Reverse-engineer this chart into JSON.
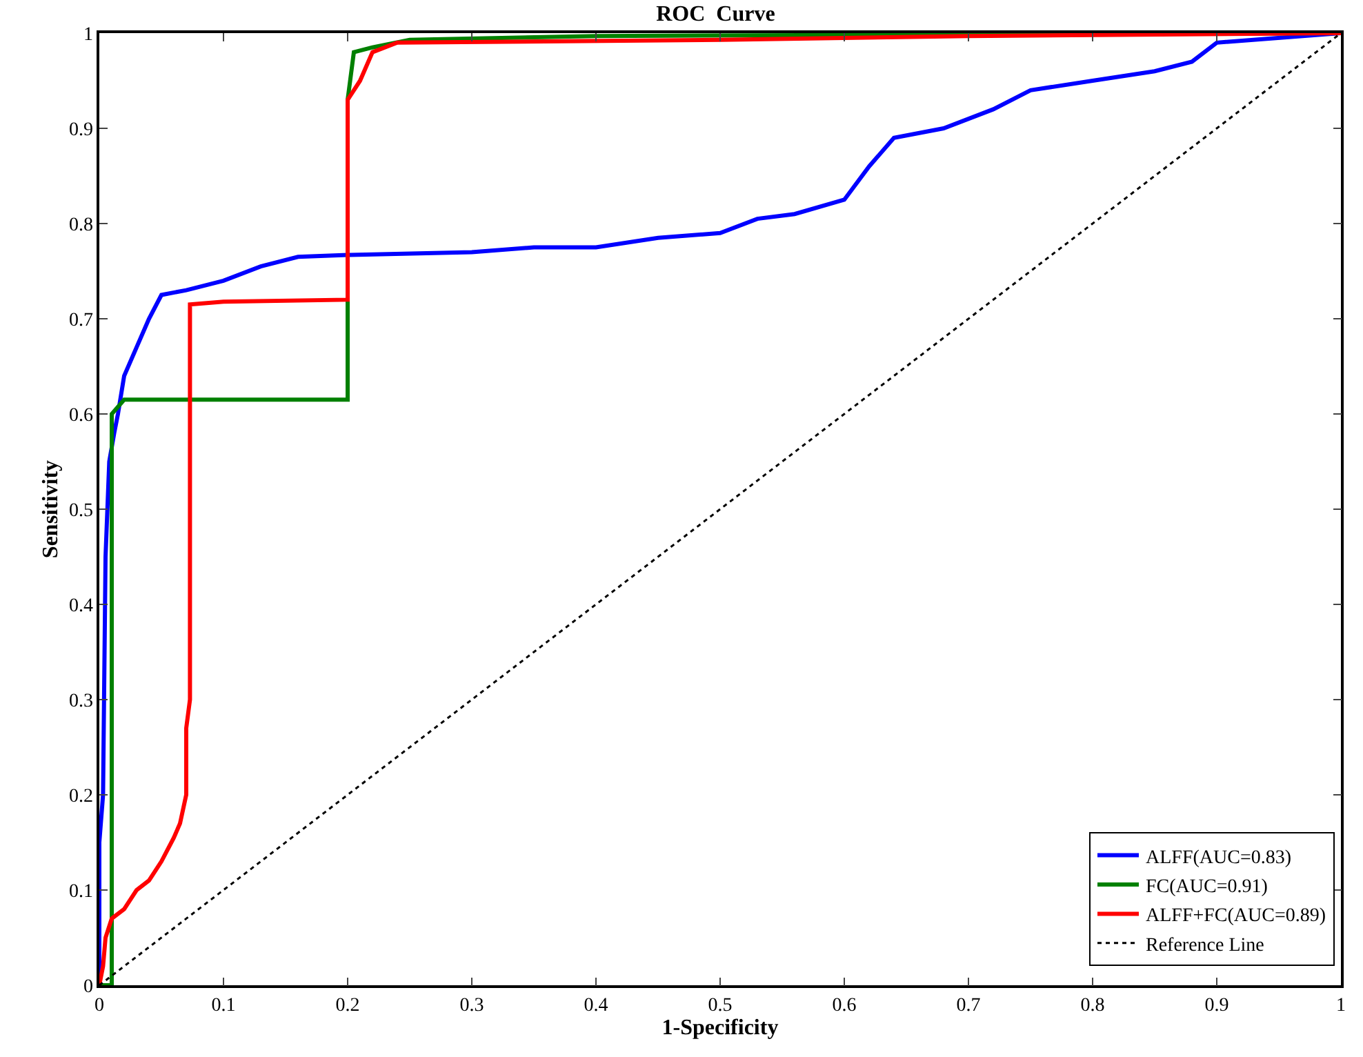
{
  "chart_data": {
    "type": "line",
    "title": "ROC  Curve",
    "xlabel": "1-Specificity",
    "ylabel": "Sensitivity",
    "xlim": [
      0,
      1
    ],
    "ylim": [
      0,
      1
    ],
    "xticks": [
      0,
      0.1,
      0.2,
      0.3,
      0.4,
      0.5,
      0.6,
      0.7,
      0.8,
      0.9,
      1
    ],
    "yticks": [
      0,
      0.1,
      0.2,
      0.3,
      0.4,
      0.5,
      0.6,
      0.7,
      0.8,
      0.9,
      1
    ],
    "legend": "bottom right",
    "marker": "none",
    "series": [
      {
        "name": "ALFF(AUC=0.83)",
        "color": "#0000ff",
        "line_style": "solid",
        "x": [
          0,
          0,
          0.003,
          0.005,
          0.008,
          0.012,
          0.015,
          0.02,
          0.03,
          0.04,
          0.05,
          0.07,
          0.1,
          0.13,
          0.16,
          0.2,
          0.3,
          0.35,
          0.4,
          0.45,
          0.5,
          0.53,
          0.56,
          0.6,
          0.62,
          0.64,
          0.68,
          0.72,
          0.75,
          0.8,
          0.85,
          0.88,
          0.9,
          1
        ],
        "values": [
          0,
          0.15,
          0.2,
          0.45,
          0.55,
          0.58,
          0.6,
          0.64,
          0.67,
          0.7,
          0.725,
          0.73,
          0.74,
          0.755,
          0.765,
          0.767,
          0.77,
          0.775,
          0.775,
          0.785,
          0.79,
          0.805,
          0.81,
          0.825,
          0.86,
          0.89,
          0.9,
          0.92,
          0.94,
          0.95,
          0.96,
          0.97,
          0.99,
          1
        ]
      },
      {
        "name": "FC(AUC=0.91)",
        "color": "#008000",
        "line_style": "solid",
        "x": [
          0,
          0.01,
          0.01,
          0.02,
          0.2,
          0.2,
          0.205,
          0.22,
          0.25,
          0.4,
          1
        ],
        "values": [
          0,
          0,
          0.6,
          0.615,
          0.615,
          0.93,
          0.98,
          0.985,
          0.993,
          0.997,
          1
        ]
      },
      {
        "name": "ALFF+FC(AUC=0.89)",
        "color": "#ff0000",
        "line_style": "solid",
        "x": [
          0,
          0.003,
          0.005,
          0.01,
          0.02,
          0.03,
          0.04,
          0.05,
          0.06,
          0.065,
          0.07,
          0.07,
          0.073,
          0.073,
          0.1,
          0.2,
          0.2,
          0.21,
          0.22,
          0.24,
          0.5,
          0.7,
          1
        ],
        "values": [
          0,
          0.02,
          0.05,
          0.07,
          0.08,
          0.1,
          0.11,
          0.13,
          0.155,
          0.17,
          0.2,
          0.27,
          0.3,
          0.715,
          0.718,
          0.72,
          0.93,
          0.95,
          0.98,
          0.99,
          0.993,
          0.997,
          1
        ]
      },
      {
        "name": "Reference Line",
        "color": "#000000",
        "line_style": "dotted",
        "x": [
          0,
          1
        ],
        "values": [
          0,
          1
        ]
      }
    ]
  }
}
